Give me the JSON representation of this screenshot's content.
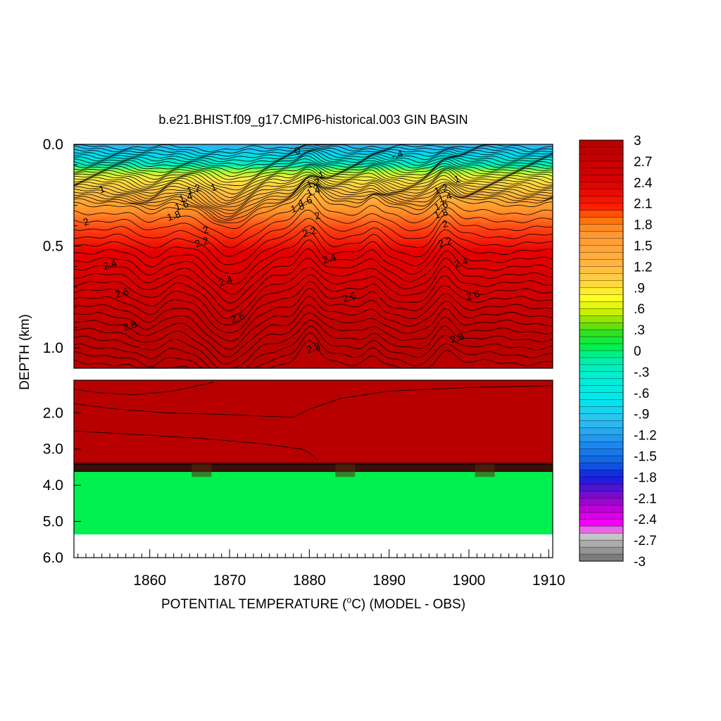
{
  "chart_data": {
    "type": "heatmap",
    "title": "b.e21.BHIST.f09_g17.CMIP6-historical.003 GIN BASIN",
    "xlabel": "POTENTIAL TEMPERATURE (",
    "xlabel_unit": "C) (MODEL - OBS)",
    "degree_mark": "o",
    "ylabel": "DEPTH (km)",
    "xlim": [
      1850.5,
      1910.5
    ],
    "x_ticks": [
      "1860",
      "1870",
      "1880",
      "1890",
      "1900",
      "1910"
    ],
    "x_tick_values": [
      1860,
      1870,
      1880,
      1890,
      1900,
      1910
    ],
    "panels": [
      {
        "name": "upper",
        "ylim": [
          0.0,
          1.1
        ],
        "y_ticks": [
          "0.0",
          "0.5",
          "1.0"
        ],
        "y_tick_values": [
          0.0,
          0.5,
          1.0
        ]
      },
      {
        "name": "lower",
        "ylim": [
          1.1,
          6.0
        ],
        "y_ticks": [
          "2.0",
          "3.0",
          "4.0",
          "5.0",
          "6.0"
        ],
        "y_tick_values": [
          2.0,
          3.0,
          4.0,
          5.0,
          6.0
        ]
      }
    ],
    "contour_labels": [
      {
        "text": "0",
        "x": 1878.5,
        "y": 0.03
      },
      {
        "text": "-.4",
        "x": 1891.0,
        "y": 0.05
      },
      {
        "text": "1",
        "x": 1854.0,
        "y": 0.22
      },
      {
        "text": "1",
        "x": 1868.0,
        "y": 0.21
      },
      {
        "text": "1",
        "x": 1881.5,
        "y": 0.15
      },
      {
        "text": "1",
        "x": 1898.5,
        "y": 0.17
      },
      {
        "text": "1.2",
        "x": 1865.5,
        "y": 0.22
      },
      {
        "text": "1.2",
        "x": 1880.5,
        "y": 0.19
      },
      {
        "text": "1.2",
        "x": 1896.5,
        "y": 0.22
      },
      {
        "text": "1.4",
        "x": 1864.5,
        "y": 0.26
      },
      {
        "text": "1.4",
        "x": 1880.5,
        "y": 0.23
      },
      {
        "text": "1.4",
        "x": 1897.0,
        "y": 0.26
      },
      {
        "text": "1.6",
        "x": 1864.0,
        "y": 0.3
      },
      {
        "text": "1.6",
        "x": 1879.5,
        "y": 0.28
      },
      {
        "text": "1.6",
        "x": 1896.5,
        "y": 0.3
      },
      {
        "text": "1.8",
        "x": 1863.0,
        "y": 0.35
      },
      {
        "text": "1.8",
        "x": 1878.5,
        "y": 0.31
      },
      {
        "text": "1.8",
        "x": 1896.5,
        "y": 0.34
      },
      {
        "text": "2",
        "x": 1852.0,
        "y": 0.38
      },
      {
        "text": "2",
        "x": 1867.0,
        "y": 0.42
      },
      {
        "text": "2",
        "x": 1881.0,
        "y": 0.35
      },
      {
        "text": "2",
        "x": 1897.0,
        "y": 0.39
      },
      {
        "text": "2.2",
        "x": 1866.5,
        "y": 0.48
      },
      {
        "text": "2.2",
        "x": 1880.0,
        "y": 0.43
      },
      {
        "text": "2.2",
        "x": 1897.0,
        "y": 0.48
      },
      {
        "text": "2.4",
        "x": 1855.0,
        "y": 0.59
      },
      {
        "text": "2.4",
        "x": 1869.5,
        "y": 0.67
      },
      {
        "text": "2.4",
        "x": 1882.5,
        "y": 0.56
      },
      {
        "text": "2.4",
        "x": 1899.0,
        "y": 0.58
      },
      {
        "text": "2.6",
        "x": 1856.5,
        "y": 0.73
      },
      {
        "text": "2.6",
        "x": 1871.0,
        "y": 0.85
      },
      {
        "text": "2.6",
        "x": 1885.0,
        "y": 0.75
      },
      {
        "text": "2.6",
        "x": 1900.5,
        "y": 0.74
      },
      {
        "text": "2.8",
        "x": 1857.5,
        "y": 0.89
      },
      {
        "text": "2.8",
        "x": 1880.5,
        "y": 1.0
      },
      {
        "text": "2.8",
        "x": 1898.5,
        "y": 0.95
      }
    ],
    "colorbar": {
      "min": -3.0,
      "max": 3.0,
      "step": 0.1,
      "tick_labels": [
        "3",
        "2.7",
        "2.4",
        "2.1",
        "1.8",
        "1.5",
        "1.2",
        ".9",
        ".6",
        ".3",
        "0",
        "-.3",
        "-.6",
        "-.9",
        "-1.2",
        "-1.5",
        "-1.8",
        "-2.1",
        "-2.4",
        "-2.7",
        "-3"
      ],
      "tick_values": [
        3.0,
        2.7,
        2.4,
        2.1,
        1.8,
        1.5,
        1.2,
        0.9,
        0.6,
        0.3,
        0.0,
        -0.3,
        -0.6,
        -0.9,
        -1.2,
        -1.5,
        -1.8,
        -2.1,
        -2.4,
        -2.7,
        -3.0
      ]
    },
    "colors": {
      "deep_red": "#b80000",
      "red": "#e00000",
      "orange": "#ff9a30",
      "yellow": "#ffe040",
      "green_band": "#00f050",
      "cyan": "#00e6e6",
      "blue": "#1ea0f0",
      "dark_band": "#3a1008"
    }
  }
}
